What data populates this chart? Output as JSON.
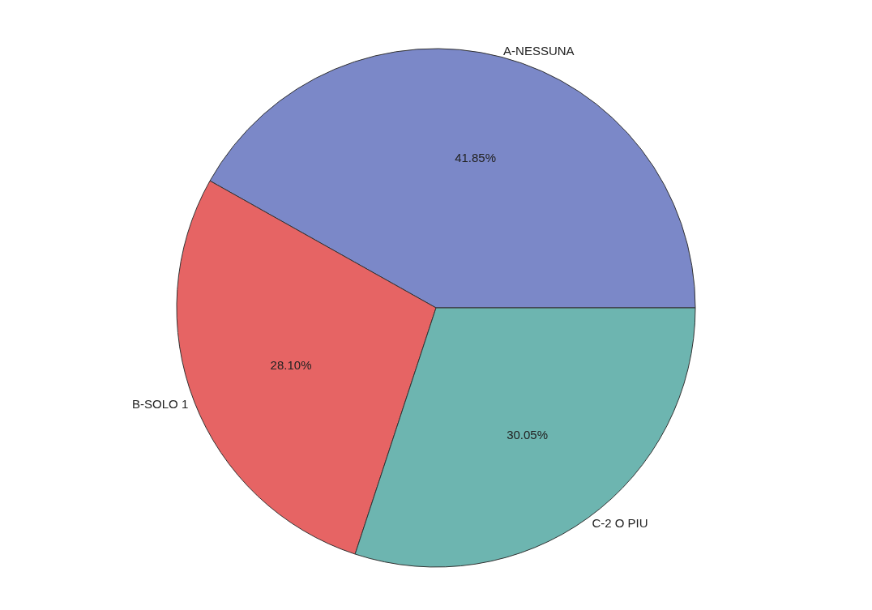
{
  "chart_data": {
    "type": "pie",
    "categories": [
      "A-NESSUNA",
      "B-SOLO 1",
      "C-2 O PIU"
    ],
    "values": [
      41.85,
      28.1,
      30.05
    ],
    "value_labels": [
      "41.85%",
      "28.10%",
      "30.05%"
    ],
    "colors": [
      "#7b88c8",
      "#e66464",
      "#6db5b0"
    ]
  }
}
